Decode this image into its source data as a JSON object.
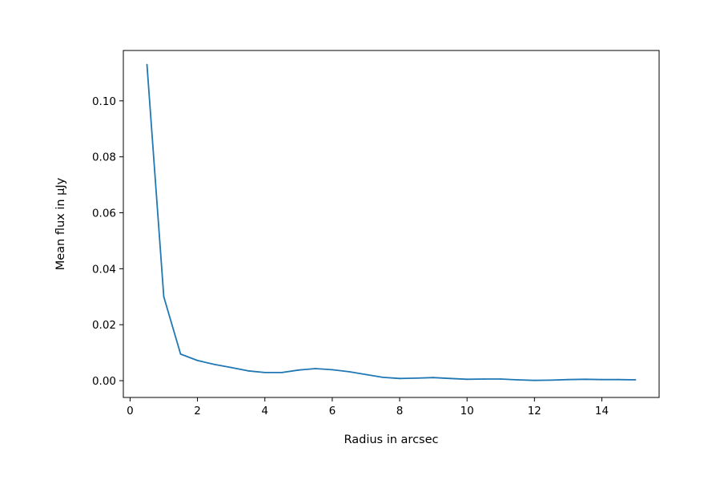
{
  "chart_data": {
    "type": "line",
    "title": "",
    "xlabel": "Radius in arcsec",
    "ylabel": "Mean flux in μJy",
    "xlim": [
      -0.2,
      15.7
    ],
    "ylim": [
      -0.006,
      0.118
    ],
    "xticks": [
      0,
      2,
      4,
      6,
      8,
      10,
      12,
      14
    ],
    "xtick_labels": [
      "0",
      "2",
      "4",
      "6",
      "8",
      "10",
      "12",
      "14"
    ],
    "yticks": [
      0.0,
      0.02,
      0.04,
      0.06,
      0.08,
      0.1
    ],
    "ytick_labels": [
      "0.00",
      "0.02",
      "0.04",
      "0.06",
      "0.08",
      "0.10"
    ],
    "grid": false,
    "line_color": "#1f77b4",
    "series": [
      {
        "x": [
          0.5,
          1.0,
          1.5,
          2.0,
          2.5,
          3.0,
          3.5,
          4.0,
          4.5,
          5.0,
          5.5,
          6.0,
          6.5,
          7.0,
          7.5,
          8.0,
          8.5,
          9.0,
          9.5,
          10.0,
          10.5,
          11.0,
          11.5,
          12.0,
          12.5,
          13.0,
          13.5,
          14.0,
          14.5,
          15.0
        ],
        "values": [
          0.113,
          0.03,
          0.0095,
          0.0072,
          0.0058,
          0.0047,
          0.0035,
          0.0029,
          0.0029,
          0.0038,
          0.0043,
          0.0039,
          0.0032,
          0.0022,
          0.0012,
          0.0008,
          0.0009,
          0.0011,
          0.0008,
          0.0005,
          0.0006,
          0.0006,
          0.0003,
          0.0001,
          0.0002,
          0.0004,
          0.0005,
          0.0004,
          0.0004,
          0.0003
        ]
      }
    ]
  }
}
